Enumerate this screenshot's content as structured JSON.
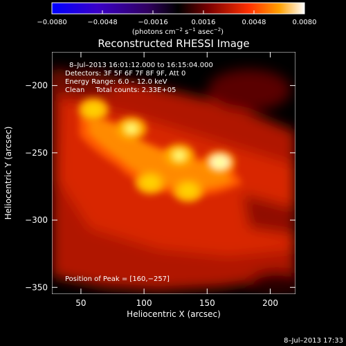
{
  "chart_data": {
    "type": "heatmap",
    "title": "Reconstructed RHESSI Image",
    "xlabel": "Heliocentric X (arcsec)",
    "ylabel": "Heliocentric Y (arcsec)",
    "xlim": [
      27,
      220
    ],
    "ylim": [
      -355,
      -175
    ],
    "xticks": [
      50,
      100,
      150,
      200
    ],
    "yticks": [
      -200,
      -250,
      -300,
      -350
    ],
    "colorbar": {
      "range": [
        -0.008,
        0.008
      ],
      "ticks": [
        "−0.0080",
        "−0.0048",
        "−0.0016",
        "0.0016",
        "0.0048",
        "0.0080"
      ],
      "unit_main": "(photons cm",
      "unit_exp1": "−2",
      "unit_mid": " s",
      "unit_exp2": "−1",
      "unit_end": " asec",
      "unit_exp3": "−2",
      "unit_close": ")"
    },
    "annotations": [
      "8–Jul–2013 16:01:12.000 to 16:15:04.000",
      "Detectors: 3F 5F 6F 7F 8F 9F, Att 0",
      "Energy Range: 6.0 – 12.0 keV",
      "Clean     Total counts: 2.33E+05"
    ],
    "peak_label": "Position of Peak = [160,−257]",
    "sources": [
      {
        "x": 60,
        "y": -218,
        "value": 0.0062
      },
      {
        "x": 90,
        "y": -232,
        "value": 0.0066
      },
      {
        "x": 128,
        "y": -252,
        "value": 0.007
      },
      {
        "x": 160,
        "y": -257,
        "value": 0.008
      },
      {
        "x": 105,
        "y": -272,
        "value": 0.0052
      },
      {
        "x": 135,
        "y": -278,
        "value": 0.0048
      }
    ]
  },
  "footer": {
    "timestamp": "8–Jul–2013 17:33"
  }
}
